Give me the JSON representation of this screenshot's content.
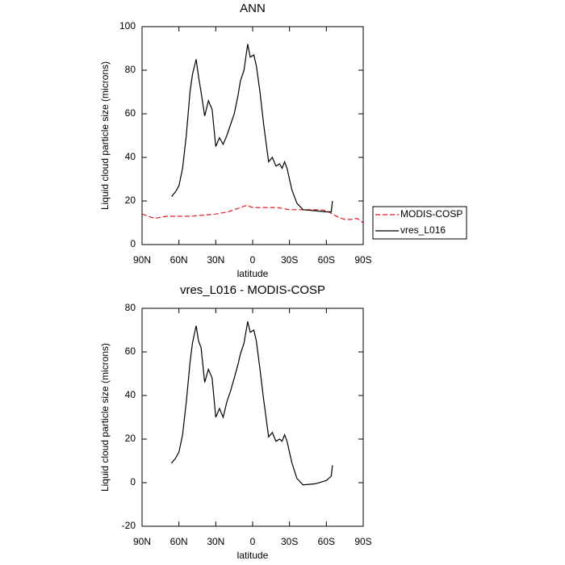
{
  "chart_data": [
    {
      "type": "line",
      "title": "ANN",
      "x_label": "latitude",
      "y_label": "Liquid cloud particle size (microns)",
      "xlim": [
        90,
        -90
      ],
      "xticks": [
        {
          "value": 90,
          "label": "90N"
        },
        {
          "value": 60,
          "label": "60N"
        },
        {
          "value": 30,
          "label": "30N"
        },
        0,
        {
          "value": -30,
          "label": "30S"
        },
        {
          "value": -60,
          "label": "60S"
        },
        {
          "value": -90,
          "label": "90S"
        }
      ],
      "ylim": [
        0,
        100
      ],
      "yticks": [
        0,
        20,
        40,
        60,
        80,
        100
      ],
      "legend": "outside-right",
      "series": [
        {
          "name": "MODIS-COSP",
          "color": "#e41a1c",
          "dash": true,
          "x": [
            90,
            85,
            80,
            75,
            70,
            60,
            50,
            40,
            30,
            20,
            15,
            10,
            5,
            0,
            -10,
            -20,
            -30,
            -40,
            -50,
            -55,
            -60,
            -65,
            -70,
            -75,
            -80,
            -85,
            -90
          ],
          "values": [
            14,
            13,
            12,
            12.5,
            13,
            13,
            13,
            13.5,
            14,
            15,
            16,
            17,
            18,
            17,
            17,
            17,
            16,
            16,
            16,
            16,
            15.5,
            14,
            12.5,
            11.5,
            11.5,
            12,
            10
          ]
        },
        {
          "name": "vres_L016",
          "color": "#000000",
          "dash": false,
          "x": [
            66,
            63,
            60,
            57,
            54,
            51,
            49,
            46,
            44,
            42,
            39,
            36,
            33,
            30,
            27,
            24,
            21,
            18,
            15,
            12,
            10,
            7,
            4,
            2,
            -1,
            -3,
            -6,
            -9,
            -13,
            -16,
            -19,
            -22,
            -24,
            -26,
            -28,
            -32,
            -36,
            -41,
            -51,
            -60,
            -64,
            -65
          ],
          "values": [
            22,
            24,
            27,
            35,
            50,
            70,
            78,
            85,
            77,
            70,
            59,
            66,
            62,
            45,
            49,
            46,
            50,
            55,
            60,
            68,
            75,
            80,
            92,
            86,
            87,
            82,
            70,
            55,
            38,
            40,
            36,
            37,
            35,
            38,
            35,
            25,
            19,
            16,
            15.5,
            15,
            15,
            20
          ]
        }
      ]
    },
    {
      "type": "line",
      "title": "vres_L016 - MODIS-COSP",
      "x_label": "latitude",
      "y_label": "Liquid cloud particle size (microns)",
      "xlim": [
        90,
        -90
      ],
      "xticks": [
        {
          "value": 90,
          "label": "90N"
        },
        {
          "value": 60,
          "label": "60N"
        },
        {
          "value": 30,
          "label": "30N"
        },
        0,
        {
          "value": -30,
          "label": "30S"
        },
        {
          "value": -60,
          "label": "60S"
        },
        {
          "value": -90,
          "label": "90S"
        }
      ],
      "ylim": [
        -20,
        80
      ],
      "yticks": [
        -20,
        0,
        20,
        40,
        60,
        80
      ],
      "color": "#000000",
      "x": [
        66,
        63,
        60,
        57,
        54,
        51,
        49,
        46,
        44,
        42,
        39,
        36,
        33,
        30,
        27,
        24,
        21,
        18,
        15,
        12,
        10,
        7,
        4,
        2,
        -1,
        -3,
        -6,
        -9,
        -13,
        -16,
        -19,
        -22,
        -24,
        -26,
        -28,
        -32,
        -36,
        -41,
        -51,
        -60,
        -64,
        -65
      ],
      "values": [
        9,
        11,
        14,
        22,
        37,
        55,
        64,
        72,
        65,
        62,
        46,
        52,
        48,
        30,
        34,
        30,
        37,
        42,
        48,
        54,
        59,
        64,
        74,
        69,
        70,
        65,
        52,
        38,
        21,
        23,
        19,
        20,
        19,
        22,
        19,
        9,
        2,
        -1,
        -0.5,
        1,
        3,
        8
      ]
    }
  ]
}
